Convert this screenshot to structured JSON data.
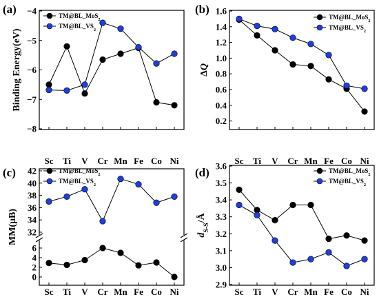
{
  "chart_data": [
    {
      "panel": "(a)",
      "type": "line",
      "categories": [
        "Sc",
        "Ti",
        "V",
        "Cr",
        "Mn",
        "Fe",
        "Co",
        "Ni"
      ],
      "ylabel": "Binding Energy(eV)",
      "ylim": [
        -8,
        -4
      ],
      "yticks": [
        -8,
        -7,
        -6,
        -5,
        -4
      ],
      "legend_position": "top-left",
      "series": [
        {
          "name": "TM@BL_MoS₂",
          "color": "#000000",
          "values": [
            -6.5,
            -5.2,
            -6.8,
            -5.65,
            -5.45,
            -5.25,
            -7.1,
            -7.2
          ]
        },
        {
          "name": "TM@BL_VS₂",
          "color": "#1f3de0",
          "values": [
            -6.68,
            -6.7,
            -6.5,
            -4.4,
            -4.6,
            -5.23,
            -5.78,
            -5.45
          ]
        }
      ]
    },
    {
      "panel": "(b)",
      "type": "line",
      "categories": [
        "Sc",
        "Ti",
        "V",
        "Cr",
        "Mn",
        "Fe",
        "Co",
        "Ni"
      ],
      "ylabel": "ΔQ",
      "ylim": [
        0.1,
        1.6
      ],
      "yticks": [
        0.2,
        0.4,
        0.6,
        0.8,
        1.0,
        1.2,
        1.4,
        1.6
      ],
      "legend_position": "top-right",
      "series": [
        {
          "name": "TM@BL_MoS₂",
          "color": "#000000",
          "values": [
            1.49,
            1.29,
            1.1,
            0.92,
            0.9,
            0.73,
            0.61,
            0.32
          ]
        },
        {
          "name": "TM@BL_VS₂",
          "color": "#1f3de0",
          "values": [
            1.5,
            1.41,
            1.37,
            1.26,
            1.18,
            1.04,
            0.65,
            0.61
          ]
        }
      ]
    },
    {
      "panel": "(c)",
      "type": "line",
      "categories": [
        "Sc",
        "Ti",
        "V",
        "Cr",
        "Mn",
        "Fe",
        "Co",
        "Ni"
      ],
      "ylabel": "MM(μB)",
      "broken_axis": true,
      "ylim_lower": [
        -1,
        7
      ],
      "ylim_upper": [
        32,
        42
      ],
      "yticks_lower": [
        0,
        2,
        4,
        6
      ],
      "yticks_upper": [
        32,
        34,
        36,
        38,
        40,
        42
      ],
      "legend_position": "top-left",
      "series": [
        {
          "name": "TM@BL_MoS₂",
          "color": "#000000",
          "values": [
            2.9,
            2.5,
            3.5,
            6.0,
            5.0,
            2.4,
            3.0,
            0.0
          ]
        },
        {
          "name": "TM@BL_VS₂",
          "color": "#1f3de0",
          "values": [
            37.0,
            37.8,
            39.0,
            33.8,
            40.7,
            39.8,
            36.8,
            37.8
          ]
        }
      ]
    },
    {
      "panel": "(d)",
      "type": "line",
      "categories": [
        "Sc",
        "Ti",
        "V",
        "Cr",
        "Mn",
        "Fe",
        "Co",
        "Ni"
      ],
      "ylabel": "d_S-S/Å",
      "ylim": [
        2.9,
        3.6
      ],
      "yticks": [
        2.9,
        3.0,
        3.1,
        3.2,
        3.3,
        3.4,
        3.5,
        3.6
      ],
      "legend_position": "top-right",
      "series": [
        {
          "name": "TM@BL_MoS₂",
          "color": "#000000",
          "values": [
            3.46,
            3.34,
            3.28,
            3.37,
            3.37,
            3.17,
            3.19,
            3.16
          ]
        },
        {
          "name": "TM@BL_VS₂",
          "color": "#1f3de0",
          "values": [
            3.37,
            3.31,
            3.16,
            3.03,
            3.05,
            3.09,
            3.01,
            3.05
          ]
        }
      ]
    }
  ]
}
